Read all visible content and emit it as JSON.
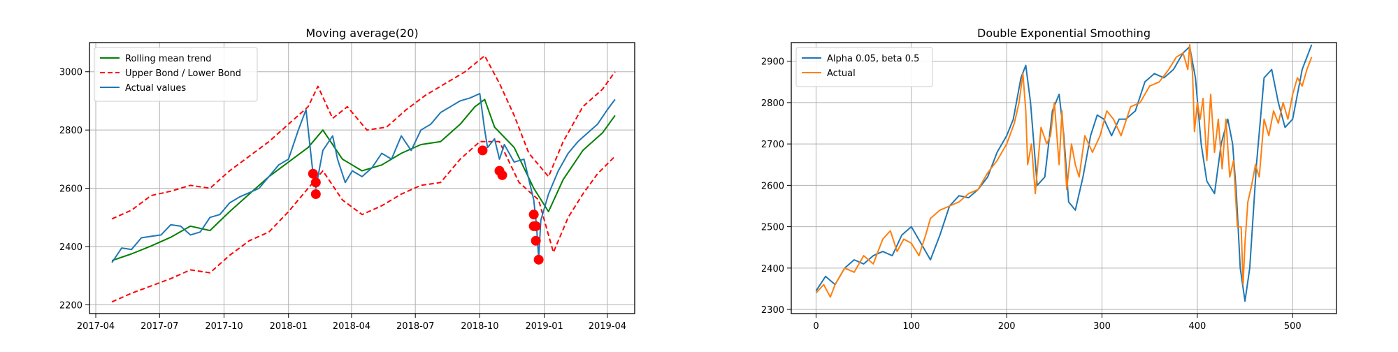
{
  "chart_data": [
    {
      "type": "line",
      "title": "Moving average(20)",
      "xlabel": "",
      "ylabel": "",
      "x_ticks": [
        "2017-04",
        "2017-07",
        "2017-10",
        "2018-01",
        "2018-04",
        "2018-07",
        "2018-10",
        "2019-01",
        "2019-04"
      ],
      "y_ticks": [
        2200,
        2400,
        2600,
        2800,
        3000
      ],
      "xlim": [
        "2017-03-23",
        "2019-05-10"
      ],
      "ylim": [
        2170,
        3100
      ],
      "grid": true,
      "legend": "top-left",
      "series": [
        {
          "name": "Rolling mean trend",
          "color": "#008000",
          "style": "solid",
          "x": [
            "2017-04-24",
            "2017-05-22",
            "2017-06-19",
            "2017-07-17",
            "2017-08-14",
            "2017-09-11",
            "2017-10-09",
            "2017-11-06",
            "2017-12-04",
            "2018-01-01",
            "2018-01-29",
            "2018-02-19",
            "2018-03-19",
            "2018-04-16",
            "2018-05-14",
            "2018-06-11",
            "2018-07-09",
            "2018-08-06",
            "2018-09-03",
            "2018-09-24",
            "2018-10-08",
            "2018-10-22",
            "2018-11-19",
            "2018-12-17",
            "2019-01-07",
            "2019-01-28",
            "2019-02-25",
            "2019-03-25",
            "2019-04-12"
          ],
          "values": [
            2352,
            2375,
            2402,
            2432,
            2470,
            2455,
            2520,
            2580,
            2640,
            2690,
            2740,
            2800,
            2700,
            2660,
            2680,
            2720,
            2750,
            2760,
            2820,
            2880,
            2905,
            2810,
            2740,
            2600,
            2520,
            2630,
            2730,
            2790,
            2850
          ]
        },
        {
          "name": "Upper Bond / Lower Bond",
          "color": "#ff0000",
          "style": "dashed",
          "x": [
            "2017-04-24",
            "2017-05-22",
            "2017-06-19",
            "2017-07-17",
            "2017-08-14",
            "2017-09-11",
            "2017-10-09",
            "2017-11-06",
            "2017-12-04",
            "2018-01-01",
            "2018-01-29",
            "2018-02-12",
            "2018-03-05",
            "2018-03-26",
            "2018-04-23",
            "2018-05-21",
            "2018-06-18",
            "2018-07-16",
            "2018-08-13",
            "2018-09-10",
            "2018-10-08",
            "2018-10-29",
            "2018-11-19",
            "2018-12-10",
            "2019-01-07",
            "2019-01-28",
            "2019-02-25",
            "2019-03-25",
            "2019-04-12"
          ],
          "values": [
            2495,
            2525,
            2575,
            2590,
            2610,
            2600,
            2660,
            2710,
            2760,
            2820,
            2880,
            2950,
            2840,
            2880,
            2800,
            2810,
            2870,
            2920,
            2960,
            3000,
            3055,
            2960,
            2850,
            2720,
            2640,
            2760,
            2880,
            2940,
            3000
          ]
        },
        {
          "name": "Lower Bond",
          "color": "#ff0000",
          "style": "dashed",
          "x": [
            "2017-04-24",
            "2017-05-22",
            "2017-06-19",
            "2017-07-17",
            "2017-08-14",
            "2017-09-11",
            "2017-10-09",
            "2017-11-06",
            "2017-12-04",
            "2018-01-01",
            "2018-01-29",
            "2018-02-19",
            "2018-03-19",
            "2018-04-16",
            "2018-05-14",
            "2018-06-11",
            "2018-07-09",
            "2018-08-06",
            "2018-09-03",
            "2018-10-01",
            "2018-10-29",
            "2018-11-26",
            "2018-12-24",
            "2019-01-14",
            "2019-02-04",
            "2019-02-25",
            "2019-03-18",
            "2019-04-12"
          ],
          "values": [
            2210,
            2240,
            2265,
            2290,
            2320,
            2310,
            2370,
            2420,
            2450,
            2520,
            2600,
            2660,
            2560,
            2510,
            2540,
            2580,
            2610,
            2620,
            2700,
            2760,
            2760,
            2620,
            2560,
            2380,
            2500,
            2580,
            2650,
            2710
          ]
        },
        {
          "name": "Actual values",
          "color": "#1f77b4",
          "style": "solid",
          "x": [
            "2017-04-24",
            "2017-05-08",
            "2017-05-22",
            "2017-06-05",
            "2017-06-19",
            "2017-07-03",
            "2017-07-17",
            "2017-07-31",
            "2017-08-14",
            "2017-08-28",
            "2017-09-11",
            "2017-09-25",
            "2017-10-09",
            "2017-10-23",
            "2017-11-06",
            "2017-11-20",
            "2017-12-04",
            "2017-12-18",
            "2018-01-01",
            "2018-01-15",
            "2018-01-26",
            "2018-02-05",
            "2018-02-09",
            "2018-02-19",
            "2018-03-05",
            "2018-03-12",
            "2018-03-23",
            "2018-04-02",
            "2018-04-16",
            "2018-04-30",
            "2018-05-14",
            "2018-05-28",
            "2018-06-11",
            "2018-06-25",
            "2018-07-09",
            "2018-07-23",
            "2018-08-06",
            "2018-08-20",
            "2018-09-03",
            "2018-09-17",
            "2018-10-01",
            "2018-10-08",
            "2018-10-12",
            "2018-10-22",
            "2018-10-29",
            "2018-11-05",
            "2018-11-19",
            "2018-12-03",
            "2018-12-10",
            "2018-12-17",
            "2018-12-21",
            "2018-12-24",
            "2018-12-27",
            "2019-01-07",
            "2019-01-21",
            "2019-02-04",
            "2019-02-18",
            "2019-03-04",
            "2019-03-18",
            "2019-04-01",
            "2019-04-12"
          ],
          "values": [
            2345,
            2395,
            2390,
            2430,
            2435,
            2440,
            2475,
            2470,
            2440,
            2450,
            2500,
            2510,
            2550,
            2570,
            2585,
            2600,
            2640,
            2680,
            2700,
            2800,
            2870,
            2650,
            2600,
            2730,
            2780,
            2700,
            2620,
            2660,
            2640,
            2670,
            2720,
            2700,
            2780,
            2730,
            2800,
            2820,
            2860,
            2880,
            2900,
            2910,
            2925,
            2800,
            2740,
            2770,
            2700,
            2750,
            2690,
            2700,
            2630,
            2560,
            2470,
            2360,
            2490,
            2580,
            2660,
            2720,
            2760,
            2790,
            2820,
            2870,
            2905
          ]
        }
      ],
      "anomalies": {
        "color": "#ff0000",
        "x": [
          "2018-02-05",
          "2018-02-09",
          "2018-02-09",
          "2018-10-05",
          "2018-10-29",
          "2018-11-02",
          "2018-12-17",
          "2018-12-17",
          "2018-12-20",
          "2018-12-20",
          "2018-12-24"
        ],
        "values": [
          2650,
          2620,
          2580,
          2730,
          2660,
          2645,
          2510,
          2470,
          2470,
          2420,
          2355
        ]
      }
    },
    {
      "type": "line",
      "title": "Double Exponential Smoothing",
      "xlabel": "",
      "ylabel": "",
      "x_ticks": [
        0,
        100,
        200,
        300,
        400,
        500
      ],
      "y_ticks": [
        2300,
        2400,
        2500,
        2600,
        2700,
        2800,
        2900
      ],
      "xlim": [
        -26,
        546
      ],
      "ylim": [
        2290,
        2945
      ],
      "grid": true,
      "legend": "top-left",
      "series": [
        {
          "name": "Alpha 0.05, beta 0.5",
          "color": "#1f77b4",
          "x": [
            0,
            10,
            20,
            30,
            40,
            50,
            60,
            70,
            80,
            90,
            100,
            110,
            120,
            130,
            140,
            150,
            160,
            170,
            180,
            190,
            200,
            207,
            215,
            220,
            225,
            232,
            240,
            248,
            255,
            260,
            265,
            272,
            280,
            288,
            295,
            302,
            310,
            318,
            325,
            335,
            345,
            355,
            365,
            375,
            385,
            392,
            398,
            404,
            410,
            418,
            425,
            432,
            437,
            441,
            445,
            450,
            455,
            462,
            470,
            478,
            485,
            492,
            500,
            510,
            520
          ],
          "values": [
            2345,
            2380,
            2360,
            2400,
            2420,
            2410,
            2430,
            2440,
            2430,
            2480,
            2500,
            2460,
            2420,
            2480,
            2550,
            2575,
            2570,
            2590,
            2620,
            2680,
            2720,
            2760,
            2860,
            2890,
            2800,
            2600,
            2620,
            2780,
            2820,
            2720,
            2560,
            2540,
            2620,
            2720,
            2770,
            2760,
            2720,
            2760,
            2760,
            2780,
            2850,
            2870,
            2860,
            2880,
            2920,
            2935,
            2860,
            2700,
            2610,
            2580,
            2700,
            2760,
            2700,
            2580,
            2400,
            2320,
            2400,
            2650,
            2860,
            2880,
            2800,
            2740,
            2760,
            2880,
            2940
          ]
        },
        {
          "name": "Actual",
          "color": "#ff7f0e",
          "x": [
            0,
            8,
            15,
            20,
            25,
            30,
            40,
            50,
            60,
            70,
            78,
            85,
            92,
            100,
            108,
            115,
            120,
            130,
            140,
            150,
            160,
            170,
            180,
            190,
            200,
            208,
            213,
            217,
            220,
            222,
            226,
            230,
            236,
            242,
            246,
            250,
            255,
            258,
            263,
            268,
            272,
            276,
            282,
            290,
            298,
            305,
            312,
            320,
            330,
            340,
            350,
            360,
            370,
            378,
            385,
            390,
            392,
            395,
            397,
            400,
            403,
            406,
            410,
            414,
            418,
            422,
            426,
            430,
            434,
            438,
            442,
            446,
            448,
            450,
            453,
            457,
            461,
            465,
            470,
            475,
            480,
            485,
            490,
            495,
            500,
            505,
            510,
            515,
            520
          ],
          "values": [
            2340,
            2360,
            2330,
            2360,
            2380,
            2400,
            2390,
            2430,
            2410,
            2470,
            2490,
            2440,
            2470,
            2460,
            2430,
            2480,
            2520,
            2540,
            2550,
            2560,
            2580,
            2590,
            2630,
            2660,
            2700,
            2750,
            2800,
            2870,
            2780,
            2650,
            2700,
            2580,
            2740,
            2700,
            2720,
            2800,
            2650,
            2780,
            2590,
            2700,
            2650,
            2620,
            2720,
            2680,
            2720,
            2780,
            2760,
            2720,
            2790,
            2800,
            2840,
            2850,
            2880,
            2910,
            2920,
            2880,
            2940,
            2870,
            2730,
            2800,
            2760,
            2810,
            2660,
            2820,
            2680,
            2760,
            2640,
            2760,
            2620,
            2660,
            2500,
            2500,
            2360,
            2460,
            2560,
            2600,
            2650,
            2620,
            2760,
            2720,
            2780,
            2750,
            2800,
            2760,
            2820,
            2860,
            2840,
            2880,
            2910
          ]
        }
      ]
    }
  ]
}
